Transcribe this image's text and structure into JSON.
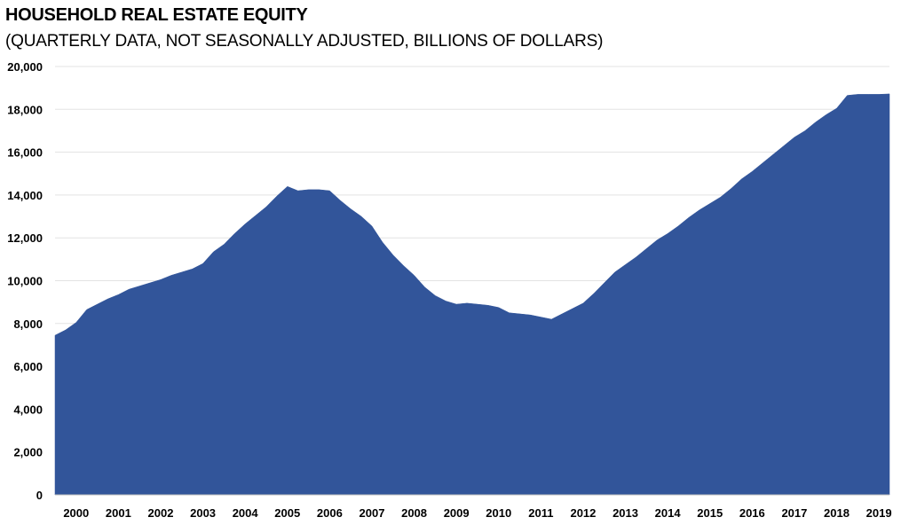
{
  "chart_data": {
    "type": "area",
    "title": "HOUSEHOLD REAL ESTATE EQUITY",
    "subtitle": "(QUARTERLY DATA, NOT SEASONALLY ADJUSTED, BILLIONS OF DOLLARS)",
    "xlabel": "",
    "ylabel": "",
    "ylim": [
      0,
      20000
    ],
    "xlim": [
      2000.0,
      2019.75
    ],
    "yticks": [
      "0",
      "2,000",
      "4,000",
      "6,000",
      "8,000",
      "10,000",
      "12,000",
      "14,000",
      "16,000",
      "18,000",
      "20,000"
    ],
    "xticks": [
      "2000",
      "2001",
      "2002",
      "2003",
      "2004",
      "2005",
      "2006",
      "2007",
      "2008",
      "2009",
      "2010",
      "2011",
      "2012",
      "2013",
      "2014",
      "2015",
      "2016",
      "2017",
      "2018",
      "2019"
    ],
    "grid": true,
    "color": "#32559a",
    "series": [
      {
        "x": [
          2000.0,
          2000.25,
          2000.5,
          2000.75,
          2001.0,
          2001.25,
          2001.5,
          2001.75,
          2002.0,
          2002.25,
          2002.5,
          2002.75,
          2003.0,
          2003.25,
          2003.5,
          2003.75,
          2004.0,
          2004.25,
          2004.5,
          2004.75,
          2005.0,
          2005.25,
          2005.5,
          2005.75,
          2006.0,
          2006.25,
          2006.5,
          2006.75,
          2007.0,
          2007.25,
          2007.5,
          2007.75,
          2008.0,
          2008.25,
          2008.5,
          2008.75,
          2009.0,
          2009.25,
          2009.5,
          2009.75,
          2010.0,
          2010.25,
          2010.5,
          2010.75,
          2011.0,
          2011.25,
          2011.5,
          2011.75,
          2012.0,
          2012.25,
          2012.5,
          2012.75,
          2013.0,
          2013.25,
          2013.5,
          2013.75,
          2014.0,
          2014.25,
          2014.5,
          2014.75,
          2015.0,
          2015.25,
          2015.5,
          2015.75,
          2016.0,
          2016.25,
          2016.5,
          2016.75,
          2017.0,
          2017.25,
          2017.5,
          2017.75,
          2018.0,
          2018.25,
          2018.5,
          2018.75,
          2019.0,
          2019.25,
          2019.5,
          2019.75
        ],
        "values": [
          7450,
          7700,
          8050,
          8650,
          8900,
          9150,
          9350,
          9600,
          9750,
          9900,
          10050,
          10250,
          10400,
          10550,
          10800,
          11350,
          11700,
          12200,
          12650,
          13050,
          13450,
          13950,
          14400,
          14200,
          14250,
          14250,
          14200,
          13750,
          13350,
          13000,
          12550,
          11800,
          11200,
          10700,
          10250,
          9700,
          9300,
          9050,
          8900,
          8950,
          8900,
          8850,
          8750,
          8500,
          8450,
          8400,
          8300,
          8200,
          8450,
          8700,
          8950,
          9400,
          9900,
          10400,
          10750,
          11100,
          11500,
          11900,
          12200,
          12550,
          12950,
          13300,
          13600,
          13900,
          14300,
          14750,
          15100,
          15500,
          15900,
          16300,
          16700,
          17000,
          17400,
          17750,
          18050,
          18650,
          18700,
          18700,
          18700,
          18720
        ]
      }
    ]
  }
}
